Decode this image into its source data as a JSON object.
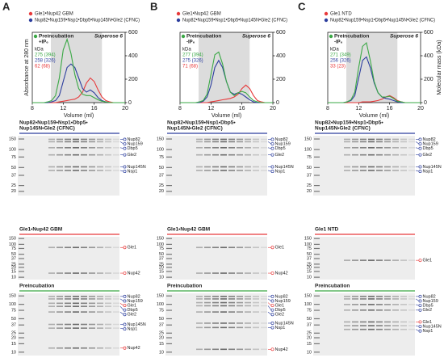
{
  "panel_labels": [
    "A",
    "B",
    "C"
  ],
  "chart_data": [
    {
      "type": "line",
      "x": [
        8,
        8.5,
        9,
        9.5,
        10,
        10.5,
        11,
        11.5,
        12,
        12.5,
        13,
        13.5,
        14,
        14.5,
        15,
        15.5,
        16,
        16.5,
        17,
        17.5,
        18,
        18.5,
        19,
        19.5,
        20
      ],
      "xlim": [
        8,
        20
      ],
      "xticks": [
        8,
        12,
        16,
        20
      ],
      "ylim": [
        0,
        100
      ],
      "y2lim": [
        0,
        600
      ],
      "y2ticks": [
        0,
        200,
        400,
        600
      ],
      "x_label": "Volume (ml)",
      "y_label": "Absorbance at 280 nm",
      "series": [
        {
          "name": "Gle1•Nup42 GBM",
          "color": "#e8393a",
          "values": [
            0,
            0,
            0,
            0,
            0,
            0,
            0,
            1,
            2,
            3,
            4,
            5,
            8,
            15,
            28,
            35,
            30,
            18,
            8,
            3,
            1,
            0,
            0,
            0,
            0
          ]
        },
        {
          "name": "Nup82•Nup159•Nsp1•Dbp5•Nup145N•Gle2 (CFNC)",
          "color": "#2c3e9e",
          "values": [
            0,
            0,
            0,
            0,
            0,
            1,
            3,
            10,
            30,
            50,
            55,
            50,
            35,
            20,
            15,
            18,
            14,
            7,
            3,
            1,
            0,
            0,
            0,
            0,
            0
          ]
        },
        {
          "name": "Preincubation",
          "color": "#3aa845",
          "values": [
            0,
            0,
            0,
            0,
            1,
            3,
            10,
            35,
            75,
            90,
            70,
            40,
            20,
            12,
            10,
            10,
            7,
            4,
            2,
            1,
            0,
            0,
            0,
            0,
            0
          ]
        }
      ],
      "condition": "+IP₆",
      "column": "Superose 6",
      "mass_unit": "kDa",
      "mass_labels": [
        {
          "text": "275 (394)",
          "color": "#3aa845"
        },
        {
          "text": "258 (326)",
          "color": "#2c3e9e"
        },
        {
          "text": "62 (68)",
          "color": "#e8393a"
        }
      ]
    },
    {
      "type": "line",
      "x": [
        8,
        8.5,
        9,
        9.5,
        10,
        10.5,
        11,
        11.5,
        12,
        12.5,
        13,
        13.5,
        14,
        14.5,
        15,
        15.5,
        16,
        16.5,
        17,
        17.5,
        18,
        18.5,
        19,
        19.5,
        20
      ],
      "xlim": [
        8,
        20
      ],
      "xticks": [
        8,
        12,
        16,
        20
      ],
      "ylim": [
        0,
        100
      ],
      "y2lim": [
        0,
        600
      ],
      "y2ticks": [
        0,
        200,
        400,
        600
      ],
      "x_label": "Volume (ml)",
      "series": [
        {
          "name": "Gle1•Nup42 GBM",
          "color": "#e8393a",
          "values": [
            0,
            0,
            0,
            0,
            0,
            0,
            0,
            0,
            1,
            2,
            3,
            4,
            5,
            6,
            8,
            12,
            20,
            25,
            20,
            10,
            3,
            1,
            0,
            0,
            0
          ]
        },
        {
          "name": "Nup82•Nup159•Nsp1•Dbp5•Nup145N•Gle2 (CFNC)",
          "color": "#2c3e9e",
          "values": [
            0,
            0,
            0,
            0,
            0,
            0,
            2,
            8,
            25,
            50,
            60,
            50,
            30,
            15,
            12,
            14,
            12,
            8,
            4,
            1,
            0,
            0,
            0,
            0,
            0
          ]
        },
        {
          "name": "Preincubation",
          "color": "#3aa845",
          "values": [
            0,
            0,
            0,
            0,
            0,
            1,
            3,
            12,
            40,
            68,
            72,
            55,
            30,
            15,
            10,
            14,
            16,
            14,
            8,
            3,
            1,
            0,
            0,
            0,
            0
          ]
        }
      ],
      "condition": "-IP₆",
      "column": "Superose 6",
      "mass_unit": "kDa",
      "mass_labels": [
        {
          "text": "277 (394)",
          "color": "#3aa845"
        },
        {
          "text": "275 (326)",
          "color": "#2c3e9e"
        },
        {
          "text": "71 (68)",
          "color": "#e8393a"
        }
      ]
    },
    {
      "type": "line",
      "x": [
        8,
        8.5,
        9,
        9.5,
        10,
        10.5,
        11,
        11.5,
        12,
        12.5,
        13,
        13.5,
        14,
        14.5,
        15,
        15.5,
        16,
        16.5,
        17,
        17.5,
        18,
        18.5,
        19,
        19.5,
        20
      ],
      "xlim": [
        8,
        20
      ],
      "xticks": [
        8,
        12,
        16,
        20
      ],
      "ylim": [
        0,
        100
      ],
      "y2lim": [
        0,
        600
      ],
      "y2ticks": [
        0,
        200,
        400,
        600
      ],
      "x_label": "Volume (ml)",
      "y2_label": "Molecular mass (kDa)",
      "series": [
        {
          "name": "Gle1 NTD",
          "color": "#e8393a",
          "values": [
            0,
            0,
            0,
            0,
            0,
            0,
            0,
            0,
            0,
            1,
            1,
            1,
            2,
            3,
            5,
            8,
            10,
            7,
            3,
            1,
            0,
            0,
            0,
            0,
            0
          ]
        },
        {
          "name": "Nup82•Nup159•Nsp1•Dbp5•Nup145N•Gle2 (CFNC)",
          "color": "#2c3e9e",
          "values": [
            0,
            0,
            0,
            0,
            0,
            1,
            3,
            10,
            35,
            60,
            65,
            50,
            28,
            14,
            8,
            6,
            5,
            3,
            1,
            0,
            0,
            0,
            0,
            0,
            0
          ]
        },
        {
          "name": "Preincubation",
          "color": "#3aa845",
          "values": [
            0,
            0,
            0,
            0,
            0,
            1,
            4,
            15,
            50,
            80,
            85,
            60,
            30,
            14,
            8,
            8,
            9,
            6,
            2,
            1,
            0,
            0,
            0,
            0,
            0
          ]
        }
      ],
      "condition": "-IP₆",
      "column": "Superose 6",
      "mass_unit": "kDa",
      "mass_labels": [
        {
          "text": "271 (349)",
          "color": "#3aa845"
        },
        {
          "text": "256 (326)",
          "color": "#2c3e9e"
        },
        {
          "text": "33 (23)",
          "color": "#e8393a"
        }
      ]
    }
  ],
  "gels": [
    [
      {
        "title_lines": [
          "Nup82•Nup159•Nsp1•Dbp5•",
          "Nup145N•Gle2 (CFNC)"
        ],
        "line_color": "#2c3e9e",
        "ladder": [
          150,
          100,
          75,
          50,
          37,
          25,
          20
        ],
        "bands": [
          {
            "name": "Nup82",
            "color": "#2c3e9e"
          },
          {
            "name": "Nup159",
            "color": "#2c3e9e"
          },
          {
            "name": "Dbp5",
            "color": "#2c3e9e"
          },
          {
            "name": "Gle2",
            "color": "#2c3e9e"
          },
          {
            "name": "Nup145N",
            "color": "#2c3e9e"
          },
          {
            "name": "Nsp1",
            "color": "#2c3e9e"
          }
        ]
      },
      {
        "title_lines": [
          "Gle1•Nup42 GBM"
        ],
        "line_color": "#e8393a",
        "ladder": [
          150,
          100,
          75,
          50,
          37,
          25,
          20,
          15,
          10
        ],
        "bands": [
          {
            "name": "Gle1",
            "color": "#e8393a"
          },
          {
            "name": "Nup42",
            "color": "#e8393a"
          }
        ]
      },
      {
        "title_lines": [
          "Preincubation"
        ],
        "line_color": "#3aa845",
        "ladder": [
          150,
          100,
          75,
          50,
          37,
          25,
          20,
          15,
          10
        ],
        "bands": [
          {
            "name": "Nup82",
            "color": "#2c3e9e"
          },
          {
            "name": "Nup159",
            "color": "#2c3e9e"
          },
          {
            "name": "Gle1",
            "color": "#e8393a"
          },
          {
            "name": "Dbp5",
            "color": "#2c3e9e"
          },
          {
            "name": "Gle2",
            "color": "#2c3e9e"
          },
          {
            "name": "Nup145N",
            "color": "#2c3e9e"
          },
          {
            "name": "Nsp1",
            "color": "#2c3e9e"
          },
          {
            "name": "Nup42",
            "color": "#e8393a"
          }
        ]
      }
    ],
    [
      {
        "title_lines": [
          "Nup82•Nup159•Nsp1•Dbp5•",
          "Nup145N•Gle2 (CFNC)"
        ],
        "line_color": "#2c3e9e",
        "ladder": [
          150,
          100,
          75,
          50,
          37,
          25,
          20
        ],
        "bands": [
          {
            "name": "Nup82",
            "color": "#2c3e9e"
          },
          {
            "name": "Nup159",
            "color": "#2c3e9e"
          },
          {
            "name": "Dbp5",
            "color": "#2c3e9e"
          },
          {
            "name": "Gle2",
            "color": "#2c3e9e"
          },
          {
            "name": "Nup145N",
            "color": "#2c3e9e"
          },
          {
            "name": "Nsp1",
            "color": "#2c3e9e"
          }
        ]
      },
      {
        "title_lines": [
          "Gle1•Nup42 GBM"
        ],
        "line_color": "#e8393a",
        "ladder": [
          150,
          100,
          75,
          50,
          37,
          25,
          20,
          15,
          10
        ],
        "bands": [
          {
            "name": "Gle1",
            "color": "#e8393a"
          },
          {
            "name": "Nup42",
            "color": "#e8393a"
          }
        ]
      },
      {
        "title_lines": [
          "Preincubation"
        ],
        "line_color": "#3aa845",
        "ladder": [
          150,
          100,
          75,
          50,
          37,
          25,
          20,
          15,
          10
        ],
        "bands": [
          {
            "name": "Nup82",
            "color": "#2c3e9e"
          },
          {
            "name": "Nup159",
            "color": "#2c3e9e"
          },
          {
            "name": "Gle1",
            "color": "#e8393a"
          },
          {
            "name": "Dbp5",
            "color": "#2c3e9e"
          },
          {
            "name": "Gle2",
            "color": "#2c3e9e"
          },
          {
            "name": "Nup145N",
            "color": "#2c3e9e"
          },
          {
            "name": "Nsp1",
            "color": "#2c3e9e"
          },
          {
            "name": "Nup42",
            "color": "#e8393a"
          }
        ]
      }
    ],
    [
      {
        "title_lines": [
          "Nup82•Nup159•Nsp1•Dbp5•",
          "Nup145N•Gle2 (CFNC)"
        ],
        "line_color": "#2c3e9e",
        "ladder": [
          150,
          100,
          75,
          50,
          37,
          25,
          20
        ],
        "bands": [
          {
            "name": "Nup82",
            "color": "#2c3e9e"
          },
          {
            "name": "Nup159",
            "color": "#2c3e9e"
          },
          {
            "name": "Dbp5",
            "color": "#2c3e9e"
          },
          {
            "name": "Gle2",
            "color": "#2c3e9e"
          },
          {
            "name": "Nup145N",
            "color": "#2c3e9e"
          },
          {
            "name": "Nsp1",
            "color": "#2c3e9e"
          }
        ]
      },
      {
        "title_lines": [
          "Gle1 NTD"
        ],
        "line_color": "#e8393a",
        "ladder": [
          150,
          100,
          75,
          50,
          37,
          25,
          20,
          15,
          10
        ],
        "bands": [
          {
            "name": "Gle1",
            "color": "#e8393a"
          }
        ]
      },
      {
        "title_lines": [
          "Preincubation"
        ],
        "line_color": "#3aa845",
        "ladder": [
          150,
          100,
          75,
          50,
          37,
          25,
          20,
          15,
          10
        ],
        "bands": [
          {
            "name": "Nup82",
            "color": "#2c3e9e"
          },
          {
            "name": "Nup159",
            "color": "#2c3e9e"
          },
          {
            "name": "Dbp5",
            "color": "#2c3e9e"
          },
          {
            "name": "Gle2",
            "color": "#2c3e9e"
          },
          {
            "name": "Gle1",
            "color": "#e8393a"
          },
          {
            "name": "Nup145N",
            "color": "#2c3e9e"
          },
          {
            "name": "Nsp1",
            "color": "#2c3e9e"
          }
        ]
      }
    ]
  ]
}
